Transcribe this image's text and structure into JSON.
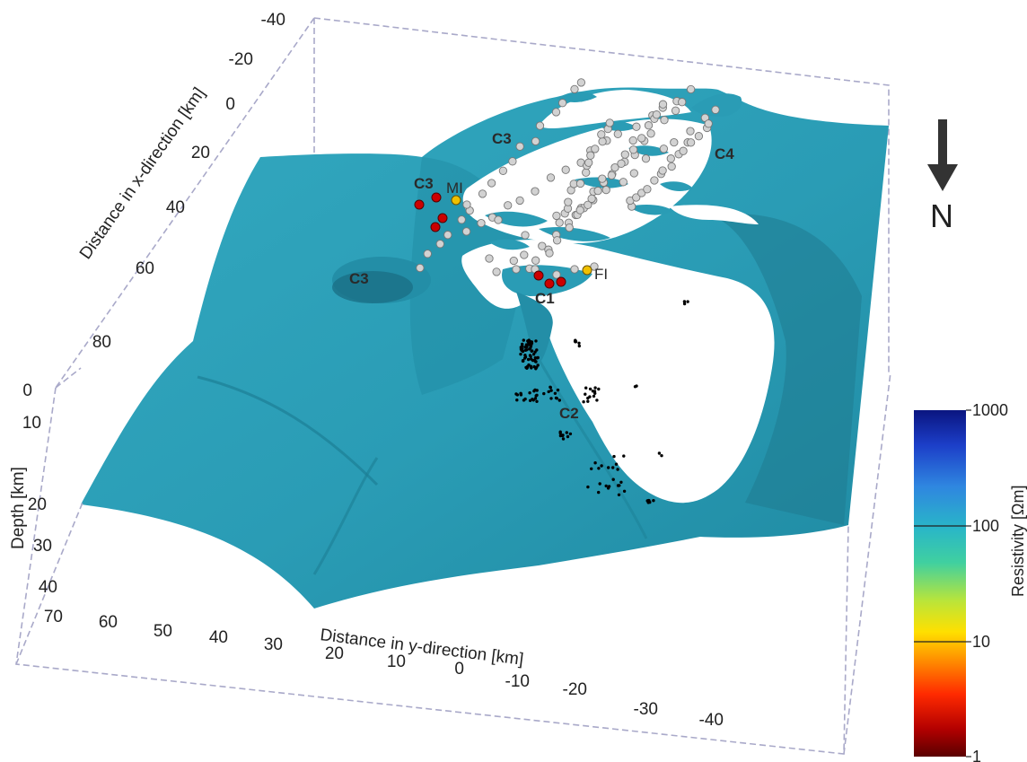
{
  "axes": {
    "x_title": "Distance in x-direction [km]",
    "x_ticks": [
      "-40",
      "-20",
      "0",
      "20",
      "40",
      "60",
      "80"
    ],
    "y_title": "Distance in y-direction [km]",
    "y_ticks": [
      "70",
      "60",
      "50",
      "40",
      "30",
      "20",
      "10",
      "0",
      "-10",
      "-20",
      "-30",
      "-40"
    ],
    "z_title": "Depth [km]",
    "z_ticks": [
      "0",
      "10",
      "20",
      "30",
      "40"
    ]
  },
  "regions": [
    "C3",
    "C3",
    "C3",
    "C1",
    "C2",
    "C4"
  ],
  "stations": [
    "MI",
    "FI"
  ],
  "north": {
    "label": "N"
  },
  "colorbar": {
    "title": "Resistivity [Ωm]",
    "ticks": [
      "1000",
      "100",
      "10",
      "1"
    ],
    "scale": "log"
  },
  "colors": {
    "conductor_surface": "#2a9cb5",
    "conductor_shadow": "#17677a",
    "box_line": "#a9a9c9",
    "hypocenter": "#000000",
    "sensor": "#c8c8c8",
    "sensor_red": "#cc0000",
    "station": "#f0c000"
  }
}
